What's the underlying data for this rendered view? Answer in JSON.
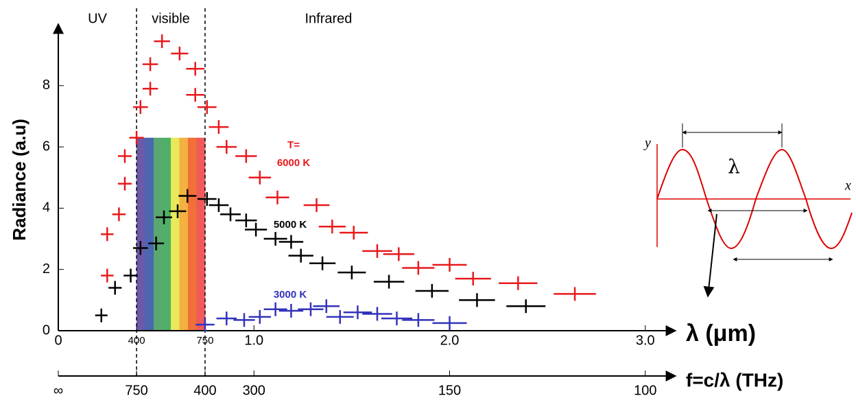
{
  "chart_data": {
    "type": "scatter",
    "y_label": "Radiance (a.u)",
    "x_label": "λ (μm)",
    "f_label": "f=c/λ (THz)",
    "regions": [
      {
        "label": "UV",
        "range": [
          0,
          0.4
        ]
      },
      {
        "label": "visible",
        "range": [
          0.4,
          0.75
        ]
      },
      {
        "label": "Infrared",
        "range": [
          0.75,
          3.12
        ]
      }
    ],
    "temperature_prefix": "T=",
    "xlim": [
      0,
      3.12
    ],
    "ylim": [
      0,
      9.9
    ],
    "xticks": [
      0,
      {
        "value": 0.4,
        "label": "400"
      },
      {
        "value": 0.75,
        "label": "750"
      },
      {
        "value": 1,
        "label": "1.0"
      },
      {
        "value": 2,
        "label": "2.0"
      },
      {
        "value": 3,
        "label": "3.0"
      }
    ],
    "yticks": [
      0,
      2,
      4,
      6,
      8
    ],
    "f_ticks": [
      {
        "value": 0,
        "label": "∞"
      },
      {
        "value": 0.4,
        "label": "750"
      },
      {
        "value": 0.75,
        "label": "400"
      },
      {
        "value": 1,
        "label": "300"
      },
      {
        "value": 2,
        "label": "150"
      },
      {
        "value": 3,
        "label": "100"
      }
    ],
    "series": [
      {
        "name": "6000 K",
        "color": "#e8191c",
        "x": [
          0.25,
          0.25,
          0.31,
          0.34,
          0.34,
          0.4,
          0.42,
          0.47,
          0.47,
          0.53,
          0.62,
          0.7,
          0.7,
          0.76,
          0.82,
          0.86,
          0.96,
          1.03,
          1.12,
          1.32,
          1.4,
          1.51,
          1.63,
          1.74,
          1.84,
          2.0,
          2.12,
          2.35,
          2.64
        ],
        "values": [
          3.15,
          1.8,
          3.8,
          4.8,
          5.7,
          6.3,
          7.3,
          7.9,
          8.7,
          9.45,
          9.05,
          8.55,
          7.7,
          7.3,
          6.65,
          6.0,
          5.7,
          5.0,
          4.35,
          4.1,
          3.4,
          3.2,
          2.6,
          2.5,
          2.05,
          2.15,
          1.7,
          1.55,
          1.2
        ]
      },
      {
        "name": "5000 K",
        "color": "#000000",
        "x": [
          0.22,
          0.29,
          0.37,
          0.42,
          0.5,
          0.54,
          0.61,
          0.66,
          0.76,
          0.82,
          0.88,
          0.96,
          1.01,
          1.11,
          1.19,
          1.24,
          1.35,
          1.5,
          1.69,
          1.91,
          2.14,
          2.39
        ],
        "values": [
          0.5,
          1.4,
          1.8,
          2.7,
          2.85,
          3.7,
          3.9,
          4.4,
          4.3,
          4.1,
          3.8,
          3.6,
          3.3,
          3.0,
          2.9,
          2.45,
          2.2,
          1.9,
          1.6,
          1.3,
          1.0,
          0.8
        ]
      },
      {
        "name": "3000 K",
        "color": "#3333bb",
        "x": [
          0.75,
          0.86,
          0.95,
          1.03,
          1.11,
          1.19,
          1.29,
          1.37,
          1.44,
          1.53,
          1.63,
          1.73,
          1.84,
          2.0
        ],
        "values": [
          0.2,
          0.4,
          0.35,
          0.45,
          0.7,
          0.65,
          0.7,
          0.8,
          0.45,
          0.6,
          0.55,
          0.4,
          0.35,
          0.25
        ]
      }
    ]
  },
  "inset": {
    "x_label": "x",
    "y_label": "y",
    "wavelength_label": "λ"
  }
}
